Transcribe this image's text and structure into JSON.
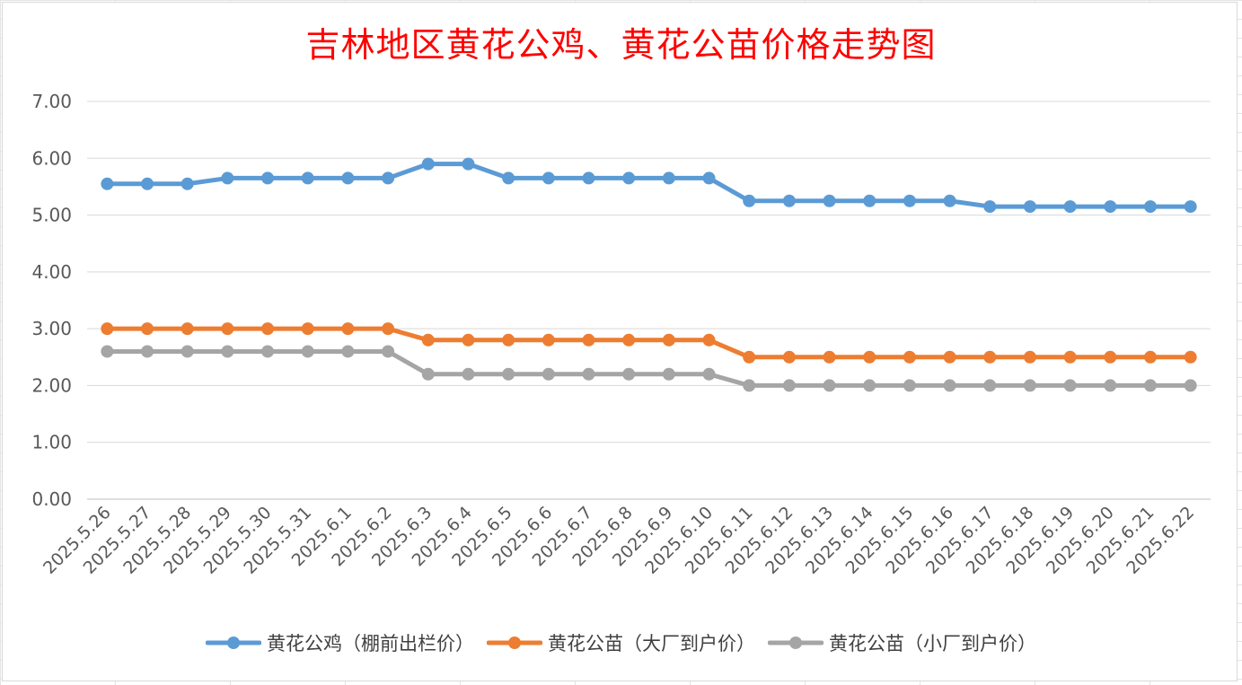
{
  "chart_data": {
    "type": "line",
    "title": "吉林地区黄花公鸡、黄花公苗价格走势图",
    "xlabel": "",
    "ylabel": "",
    "ylim": [
      0,
      7
    ],
    "ytick_step": 1,
    "ytick_labels": [
      "0.00",
      "1.00",
      "2.00",
      "3.00",
      "4.00",
      "5.00",
      "6.00",
      "7.00"
    ],
    "grid": "horizontal",
    "legend_position": "bottom",
    "categories": [
      "2025.5.26",
      "2025.5.27",
      "2025.5.28",
      "2025.5.29",
      "2025.5.30",
      "2025.5.31",
      "2025.6.1",
      "2025.6.2",
      "2025.6.3",
      "2025.6.4",
      "2025.6.5",
      "2025.6.6",
      "2025.6.7",
      "2025.6.8",
      "2025.6.9",
      "2025.6.10",
      "2025.6.11",
      "2025.6.12",
      "2025.6.13",
      "2025.6.14",
      "2025.6.15",
      "2025.6.16",
      "2025.6.17",
      "2025.6.18",
      "2025.6.19",
      "2025.6.20",
      "2025.6.21",
      "2025.6.22"
    ],
    "series": [
      {
        "name": "黄花公鸡（棚前出栏价）",
        "color": "#5b9bd5",
        "values": [
          5.55,
          5.55,
          5.55,
          5.65,
          5.65,
          5.65,
          5.65,
          5.65,
          5.9,
          5.9,
          5.65,
          5.65,
          5.65,
          5.65,
          5.65,
          5.65,
          5.25,
          5.25,
          5.25,
          5.25,
          5.25,
          5.25,
          5.15,
          5.15,
          5.15,
          5.15,
          5.15,
          5.15
        ]
      },
      {
        "name": "黄花公苗（大厂到户价）",
        "color": "#ed7d31",
        "values": [
          3.0,
          3.0,
          3.0,
          3.0,
          3.0,
          3.0,
          3.0,
          3.0,
          2.8,
          2.8,
          2.8,
          2.8,
          2.8,
          2.8,
          2.8,
          2.8,
          2.5,
          2.5,
          2.5,
          2.5,
          2.5,
          2.5,
          2.5,
          2.5,
          2.5,
          2.5,
          2.5,
          2.5
        ]
      },
      {
        "name": "黄花公苗（小厂到户价）",
        "color": "#a5a5a5",
        "values": [
          2.6,
          2.6,
          2.6,
          2.6,
          2.6,
          2.6,
          2.6,
          2.6,
          2.2,
          2.2,
          2.2,
          2.2,
          2.2,
          2.2,
          2.2,
          2.2,
          2.0,
          2.0,
          2.0,
          2.0,
          2.0,
          2.0,
          2.0,
          2.0,
          2.0,
          2.0,
          2.0,
          2.0
        ]
      }
    ]
  }
}
